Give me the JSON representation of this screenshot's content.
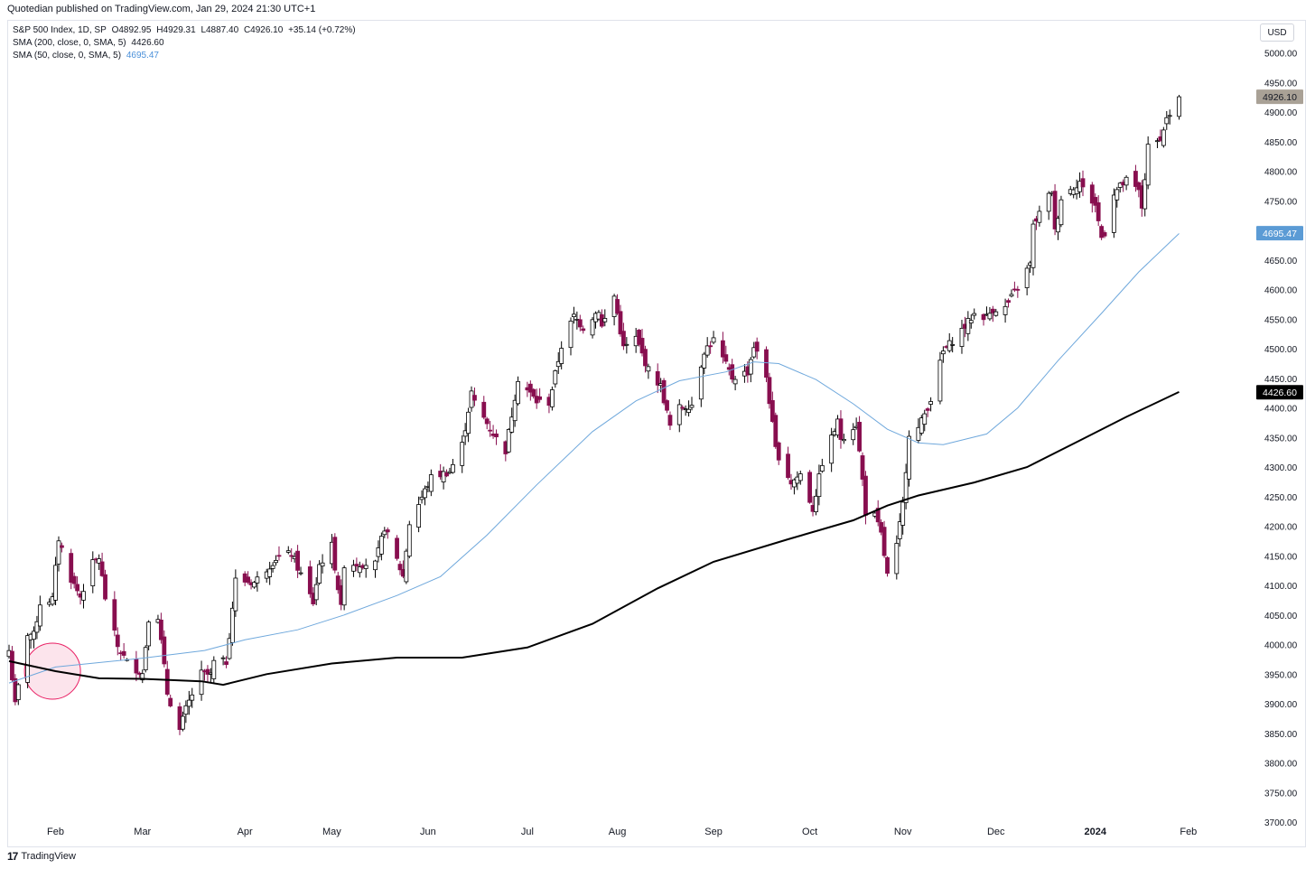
{
  "header": {
    "published": "Quotedian published on TradingView.com, Jan 29, 2024 21:30 UTC+1",
    "symbol_line": "S&P 500 Index, 1D, SP",
    "open": "O4892.95",
    "high": "H4929.31",
    "low": "L4887.40",
    "close": "C4926.10",
    "change": "+35.14 (+0.72%)",
    "sma200_label": "SMA (200, close, 0, SMA, 5)",
    "sma200_value": "4426.60",
    "sma50_label": "SMA (50, close, 0, SMA, 5)",
    "sma50_value": "4695.47",
    "currency": "USD"
  },
  "footer": {
    "brand": "TradingView",
    "logo": "17"
  },
  "colors": {
    "up_fill": "#ffffff",
    "up_border": "#000000",
    "down_fill": "#880e4f",
    "down_border": "#880e4f",
    "sma50": "#6fa8dc",
    "sma200": "#000000",
    "last_price_bg": "#a9a196",
    "sma50_bg": "#5b9bd5",
    "sma200_bg": "#000000",
    "circle": "#e91e63"
  },
  "chart_data": {
    "type": "candlestick",
    "symbol": "S&P 500 Index",
    "interval": "1D",
    "ylim": [
      3700,
      5050
    ],
    "y_ticks": [
      3700,
      3750,
      3800,
      3850,
      3900,
      3950,
      4000,
      4050,
      4100,
      4150,
      4200,
      4250,
      4300,
      4350,
      4400,
      4450,
      4500,
      4550,
      4600,
      4650,
      4700,
      4750,
      4800,
      4850,
      4900,
      4950,
      5000
    ],
    "y_tick_labels": [
      "3700.00",
      "3750.00",
      "3800.00",
      "3850.00",
      "3900.00",
      "3950.00",
      "4000.00",
      "4050.00",
      "4100.00",
      "4150.00",
      "4200.00",
      "4250.00",
      "4300.00",
      "4350.00",
      "4400.00",
      "4450.00",
      "4500.00",
      "4550.00",
      "4600.00",
      "4650.00",
      "4700.00",
      "4750.00",
      "4800.00",
      "4850.00",
      "4900.00",
      "4950.00",
      "5000.00"
    ],
    "x_labels": [
      "Feb",
      "Mar",
      "Apr",
      "May",
      "Jun",
      "Jul",
      "Aug",
      "Sep",
      "Oct",
      "Nov",
      "Dec",
      "2024",
      "Feb"
    ],
    "x_label_dates": [
      "2023-02-01",
      "2023-03-01",
      "2023-04-03",
      "2023-05-01",
      "2023-06-01",
      "2023-07-03",
      "2023-08-01",
      "2023-09-01",
      "2023-10-02",
      "2023-11-01",
      "2023-12-01",
      "2024-01-02",
      "2024-02-01"
    ],
    "first_date": "2023-01-17",
    "last_date": "2024-01-29",
    "date_range_end": "2024-02-22",
    "last_price_label": "4926.10",
    "sma50_label": "4695.47",
    "sma200_label": "4426.60",
    "anchors": [
      [
        "2023-01-17",
        3990
      ],
      [
        "2023-01-19",
        3898
      ],
      [
        "2023-01-23",
        4019
      ],
      [
        "2023-01-25",
        4016
      ],
      [
        "2023-01-27",
        4070
      ],
      [
        "2023-01-31",
        4077
      ],
      [
        "2023-02-02",
        4179
      ],
      [
        "2023-02-06",
        4111
      ],
      [
        "2023-02-09",
        4081
      ],
      [
        "2023-02-13",
        4137
      ],
      [
        "2023-02-15",
        4147
      ],
      [
        "2023-02-17",
        4079
      ],
      [
        "2023-02-21",
        3997
      ],
      [
        "2023-02-24",
        3970
      ],
      [
        "2023-03-01",
        3951
      ],
      [
        "2023-03-03",
        4045
      ],
      [
        "2023-03-06",
        4048
      ],
      [
        "2023-03-09",
        3918
      ],
      [
        "2023-03-13",
        3855
      ],
      [
        "2023-03-15",
        3891
      ],
      [
        "2023-03-17",
        3916
      ],
      [
        "2023-03-20",
        3951
      ],
      [
        "2023-03-23",
        3948
      ],
      [
        "2023-03-24",
        3970
      ],
      [
        "2023-03-28",
        3971
      ],
      [
        "2023-03-31",
        4109
      ],
      [
        "2023-04-06",
        4105
      ],
      [
        "2023-04-13",
        4146
      ],
      [
        "2023-04-18",
        4154
      ],
      [
        "2023-04-25",
        4071
      ],
      [
        "2023-04-27",
        4135
      ],
      [
        "2023-05-01",
        4167
      ],
      [
        "2023-05-04",
        4061
      ],
      [
        "2023-05-05",
        4136
      ],
      [
        "2023-05-10",
        4137
      ],
      [
        "2023-05-15",
        4136
      ],
      [
        "2023-05-18",
        4198
      ],
      [
        "2023-05-24",
        4115
      ],
      [
        "2023-05-26",
        4205
      ],
      [
        "2023-06-02",
        4282
      ],
      [
        "2023-06-08",
        4293
      ],
      [
        "2023-06-12",
        4338
      ],
      [
        "2023-06-15",
        4426
      ],
      [
        "2023-06-16",
        4409
      ],
      [
        "2023-06-23",
        4348
      ],
      [
        "2023-06-26",
        4328
      ],
      [
        "2023-06-30",
        4450
      ],
      [
        "2023-07-06",
        4411
      ],
      [
        "2023-07-10",
        4409
      ],
      [
        "2023-07-14",
        4505
      ],
      [
        "2023-07-18",
        4555
      ],
      [
        "2023-07-21",
        4536
      ],
      [
        "2023-07-26",
        4566
      ],
      [
        "2023-07-27",
        4537
      ],
      [
        "2023-07-31",
        4589
      ],
      [
        "2023-08-03",
        4501
      ],
      [
        "2023-08-07",
        4518
      ],
      [
        "2023-08-11",
        4464
      ],
      [
        "2023-08-15",
        4437
      ],
      [
        "2023-08-18",
        4369
      ],
      [
        "2023-08-21",
        4400
      ],
      [
        "2023-08-25",
        4406
      ],
      [
        "2023-08-29",
        4497
      ],
      [
        "2023-09-01",
        4515
      ],
      [
        "2023-09-07",
        4451
      ],
      [
        "2023-09-12",
        4461
      ],
      [
        "2023-09-14",
        4505
      ],
      [
        "2023-09-18",
        4453
      ],
      [
        "2023-09-21",
        4330
      ],
      [
        "2023-09-26",
        4274
      ],
      [
        "2023-09-29",
        4288
      ],
      [
        "2023-10-03",
        4229
      ],
      [
        "2023-10-06",
        4308
      ],
      [
        "2023-10-11",
        4376
      ],
      [
        "2023-10-12",
        4349
      ],
      [
        "2023-10-17",
        4373
      ],
      [
        "2023-10-19",
        4278
      ],
      [
        "2023-10-20",
        4224
      ],
      [
        "2023-10-23",
        4217
      ],
      [
        "2023-10-25",
        4186
      ],
      [
        "2023-10-27",
        4117
      ],
      [
        "2023-10-30",
        4166
      ],
      [
        "2023-11-01",
        4237
      ],
      [
        "2023-11-03",
        4358
      ],
      [
        "2023-11-06",
        4365
      ],
      [
        "2023-11-10",
        4415
      ],
      [
        "2023-11-14",
        4495
      ],
      [
        "2023-11-17",
        4514
      ],
      [
        "2023-11-21",
        4538
      ],
      [
        "2023-11-24",
        4559
      ],
      [
        "2023-11-28",
        4554
      ],
      [
        "2023-11-30",
        4567
      ],
      [
        "2023-12-04",
        4569
      ],
      [
        "2023-12-08",
        4604
      ],
      [
        "2023-12-12",
        4643
      ],
      [
        "2023-12-13",
        4707
      ],
      [
        "2023-12-14",
        4719
      ],
      [
        "2023-12-19",
        4768
      ],
      [
        "2023-12-20",
        4698
      ],
      [
        "2023-12-22",
        4755
      ],
      [
        "2023-12-28",
        4783
      ],
      [
        "2023-12-29",
        4770
      ],
      [
        "2024-01-02",
        4743
      ],
      [
        "2024-01-04",
        4688
      ],
      [
        "2024-01-05",
        4697
      ],
      [
        "2024-01-08",
        4764
      ],
      [
        "2024-01-12",
        4784
      ],
      [
        "2024-01-16",
        4766
      ],
      [
        "2024-01-17",
        4739
      ],
      [
        "2024-01-19",
        4840
      ],
      [
        "2024-01-22",
        4850
      ],
      [
        "2024-01-24",
        4868
      ],
      [
        "2024-01-25",
        4894
      ],
      [
        "2024-01-26",
        4891
      ],
      [
        "2024-01-29",
        4926
      ]
    ],
    "sma50": [
      [
        "2023-01-17",
        3935
      ],
      [
        "2023-02-01",
        3962
      ],
      [
        "2023-03-01",
        3977
      ],
      [
        "2023-03-21",
        3990
      ],
      [
        "2023-04-03",
        4008
      ],
      [
        "2023-04-20",
        4025
      ],
      [
        "2023-05-05",
        4050
      ],
      [
        "2023-05-22",
        4083
      ],
      [
        "2023-06-05",
        4115
      ],
      [
        "2023-06-20",
        4185
      ],
      [
        "2023-07-06",
        4270
      ],
      [
        "2023-07-24",
        4360
      ],
      [
        "2023-08-07",
        4412
      ],
      [
        "2023-08-21",
        4446
      ],
      [
        "2023-09-05",
        4461
      ],
      [
        "2023-09-14",
        4478
      ],
      [
        "2023-09-22",
        4475
      ],
      [
        "2023-10-04",
        4448
      ],
      [
        "2023-10-16",
        4407
      ],
      [
        "2023-10-27",
        4364
      ],
      [
        "2023-11-06",
        4341
      ],
      [
        "2023-11-14",
        4338
      ],
      [
        "2023-11-28",
        4356
      ],
      [
        "2023-12-08",
        4400
      ],
      [
        "2023-12-21",
        4480
      ],
      [
        "2024-01-04",
        4560
      ],
      [
        "2024-01-16",
        4630
      ],
      [
        "2024-01-29",
        4695
      ]
    ],
    "sma200": [
      [
        "2023-01-17",
        3972
      ],
      [
        "2023-02-01",
        3955
      ],
      [
        "2023-02-15",
        3943
      ],
      [
        "2023-03-01",
        3942
      ],
      [
        "2023-03-20",
        3938
      ],
      [
        "2023-03-27",
        3932
      ],
      [
        "2023-04-10",
        3950
      ],
      [
        "2023-05-01",
        3968
      ],
      [
        "2023-05-22",
        3978
      ],
      [
        "2023-06-12",
        3978
      ],
      [
        "2023-07-03",
        3995
      ],
      [
        "2023-07-24",
        4035
      ],
      [
        "2023-08-14",
        4095
      ],
      [
        "2023-09-01",
        4140
      ],
      [
        "2023-09-25",
        4178
      ],
      [
        "2023-10-16",
        4210
      ],
      [
        "2023-10-27",
        4235
      ],
      [
        "2023-11-06",
        4252
      ],
      [
        "2023-11-24",
        4274
      ],
      [
        "2023-12-11",
        4300
      ],
      [
        "2023-12-28",
        4345
      ],
      [
        "2024-01-12",
        4385
      ],
      [
        "2024-01-29",
        4427
      ]
    ],
    "highlight_circle_date": "2023-01-31",
    "highlight_circle_value": 3955
  }
}
